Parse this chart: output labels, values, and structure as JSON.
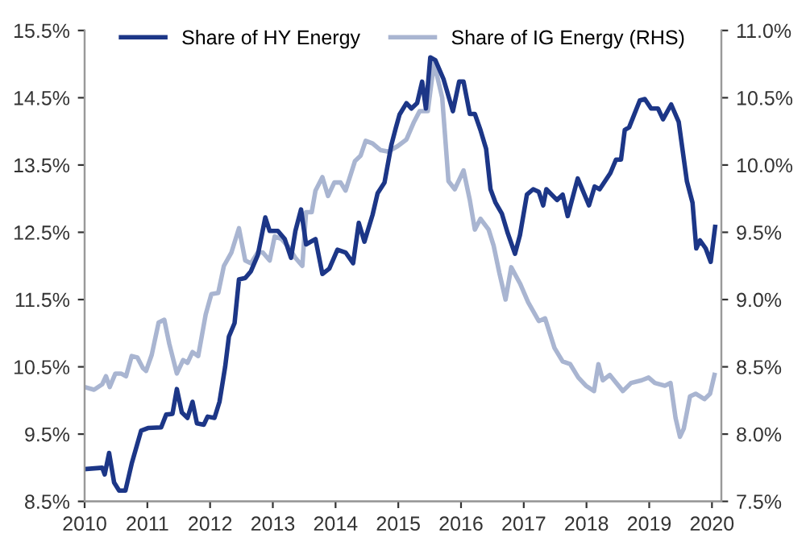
{
  "chart_data": {
    "type": "line",
    "xlim": [
      2010,
      2020.15
    ],
    "xticks": [
      2010,
      2011,
      2012,
      2013,
      2014,
      2015,
      2016,
      2017,
      2018,
      2019,
      2020
    ],
    "ylim": [
      8.5,
      15.5
    ],
    "yticks": [
      {
        "value": 8.5,
        "label": "8.5%"
      },
      {
        "value": 9.5,
        "label": "9.5%"
      },
      {
        "value": 10.5,
        "label": "10.5%"
      },
      {
        "value": 11.5,
        "label": "11.5%"
      },
      {
        "value": 12.5,
        "label": "12.5%"
      },
      {
        "value": 13.5,
        "label": "13.5%"
      },
      {
        "value": 14.5,
        "label": "14.5%"
      },
      {
        "value": 15.5,
        "label": "15.5%"
      }
    ],
    "y2lim": [
      7.5,
      11.0
    ],
    "y2ticks": [
      {
        "value": 7.5,
        "label": "7.5%"
      },
      {
        "value": 8.0,
        "label": "8.0%"
      },
      {
        "value": 8.5,
        "label": "8.5%"
      },
      {
        "value": 9.0,
        "label": "9.0%"
      },
      {
        "value": 9.5,
        "label": "9.5%"
      },
      {
        "value": 10.0,
        "label": "10.0%"
      },
      {
        "value": 10.5,
        "label": "10.5%"
      },
      {
        "value": 11.0,
        "label": "11.0%"
      }
    ],
    "grid": false,
    "legend": "top",
    "marker": "none",
    "line_style": "solid",
    "series": [
      {
        "name": "Share of HY Energy",
        "color": "#1c3687",
        "x": [
          2010.0,
          2010.28,
          2010.32,
          2010.39,
          2010.47,
          2010.55,
          2010.65,
          2010.75,
          2010.9,
          2011.01,
          2011.22,
          2011.3,
          2011.4,
          2011.47,
          2011.55,
          2011.64,
          2011.72,
          2011.79,
          2011.9,
          2011.96,
          2012.07,
          2012.15,
          2012.24,
          2012.3,
          2012.39,
          2012.46,
          2012.56,
          2012.65,
          2012.76,
          2012.88,
          2012.95,
          2013.08,
          2013.19,
          2013.29,
          2013.36,
          2013.45,
          2013.53,
          2013.68,
          2013.79,
          2013.9,
          2014.03,
          2014.16,
          2014.28,
          2014.37,
          2014.46,
          2014.59,
          2014.67,
          2014.78,
          2014.89,
          2014.96,
          2015.02,
          2015.13,
          2015.21,
          2015.3,
          2015.38,
          2015.44,
          2015.51,
          2015.59,
          2015.72,
          2015.87,
          2015.97,
          2016.04,
          2016.14,
          2016.22,
          2016.31,
          2016.4,
          2016.47,
          2016.55,
          2016.65,
          2016.74,
          2016.86,
          2016.94,
          2017.05,
          2017.15,
          2017.24,
          2017.31,
          2017.36,
          2017.53,
          2017.62,
          2017.7,
          2017.86,
          2018.04,
          2018.13,
          2018.21,
          2018.38,
          2018.47,
          2018.55,
          2018.61,
          2018.68,
          2018.85,
          2018.93,
          2019.03,
          2019.14,
          2019.22,
          2019.35,
          2019.47,
          2019.6,
          2019.69,
          2019.75,
          2019.81,
          2019.9,
          2019.98,
          2020.05
        ],
        "values": [
          8.98,
          9.0,
          8.9,
          9.22,
          8.78,
          8.66,
          8.66,
          9.06,
          9.55,
          9.59,
          9.6,
          9.79,
          9.8,
          10.17,
          9.82,
          9.74,
          9.98,
          9.66,
          9.64,
          9.76,
          9.74,
          9.98,
          10.5,
          10.95,
          11.15,
          11.8,
          11.82,
          11.92,
          12.16,
          12.72,
          12.52,
          12.52,
          12.4,
          12.12,
          12.52,
          12.84,
          12.32,
          12.4,
          11.88,
          11.96,
          12.24,
          12.2,
          12.04,
          12.64,
          12.36,
          12.76,
          13.08,
          13.24,
          13.8,
          14.05,
          14.25,
          14.42,
          14.34,
          14.42,
          14.74,
          14.34,
          15.1,
          15.06,
          14.78,
          14.3,
          14.74,
          14.74,
          14.26,
          14.26,
          14.02,
          13.74,
          13.14,
          12.94,
          12.78,
          12.5,
          12.18,
          12.46,
          13.06,
          13.14,
          13.1,
          12.9,
          13.14,
          12.98,
          13.06,
          12.74,
          13.3,
          12.9,
          13.18,
          13.14,
          13.38,
          13.58,
          13.58,
          14.02,
          14.06,
          14.46,
          14.48,
          14.34,
          14.34,
          14.18,
          14.4,
          14.14,
          13.26,
          12.94,
          12.26,
          12.38,
          12.26,
          12.06,
          12.58
        ]
      },
      {
        "name": "Share of IG Energy (RHS)",
        "color": "#a9b5d1",
        "axis": "y2",
        "x": [
          2010.0,
          2010.15,
          2010.28,
          2010.34,
          2010.4,
          2010.49,
          2010.58,
          2010.66,
          2010.75,
          2010.84,
          2010.93,
          2010.98,
          2011.07,
          2011.18,
          2011.27,
          2011.35,
          2011.47,
          2011.57,
          2011.64,
          2011.72,
          2011.81,
          2011.93,
          2012.02,
          2012.13,
          2012.22,
          2012.34,
          2012.46,
          2012.56,
          2012.65,
          2012.76,
          2012.84,
          2012.95,
          2013.03,
          2013.14,
          2013.25,
          2013.36,
          2013.47,
          2013.53,
          2013.62,
          2013.68,
          2013.79,
          2013.88,
          2013.98,
          2014.08,
          2014.16,
          2014.31,
          2014.4,
          2014.48,
          2014.59,
          2014.72,
          2014.84,
          2014.99,
          2015.13,
          2015.25,
          2015.34,
          2015.47,
          2015.57,
          2015.7,
          2015.8,
          2015.9,
          2016.04,
          2016.14,
          2016.22,
          2016.31,
          2016.44,
          2016.52,
          2016.61,
          2016.71,
          2016.8,
          2016.94,
          2017.07,
          2017.24,
          2017.34,
          2017.49,
          2017.62,
          2017.74,
          2017.87,
          2017.99,
          2018.12,
          2018.19,
          2018.26,
          2018.37,
          2018.58,
          2018.71,
          2018.88,
          2018.99,
          2019.09,
          2019.25,
          2019.34,
          2019.42,
          2019.49,
          2019.55,
          2019.65,
          2019.74,
          2019.88,
          2019.97,
          2020.04
        ],
        "values": [
          8.35,
          8.33,
          8.37,
          8.43,
          8.35,
          8.45,
          8.45,
          8.43,
          8.58,
          8.57,
          8.49,
          8.47,
          8.59,
          8.83,
          8.85,
          8.67,
          8.45,
          8.55,
          8.53,
          8.61,
          8.58,
          8.89,
          9.04,
          9.05,
          9.25,
          9.35,
          9.53,
          9.29,
          9.27,
          9.35,
          9.35,
          9.29,
          9.47,
          9.45,
          9.39,
          9.31,
          9.25,
          9.65,
          9.65,
          9.81,
          9.91,
          9.77,
          9.87,
          9.87,
          9.81,
          10.03,
          10.07,
          10.18,
          10.16,
          10.11,
          10.1,
          10.14,
          10.19,
          10.32,
          10.4,
          10.4,
          10.76,
          10.5,
          9.88,
          9.82,
          9.96,
          9.74,
          9.52,
          9.6,
          9.52,
          9.4,
          9.2,
          9.0,
          9.24,
          9.12,
          8.98,
          8.84,
          8.86,
          8.64,
          8.54,
          8.52,
          8.42,
          8.36,
          8.32,
          8.52,
          8.4,
          8.44,
          8.32,
          8.38,
          8.4,
          8.42,
          8.38,
          8.36,
          8.38,
          8.12,
          7.98,
          8.04,
          8.28,
          8.3,
          8.26,
          8.3,
          8.44
        ]
      }
    ]
  }
}
